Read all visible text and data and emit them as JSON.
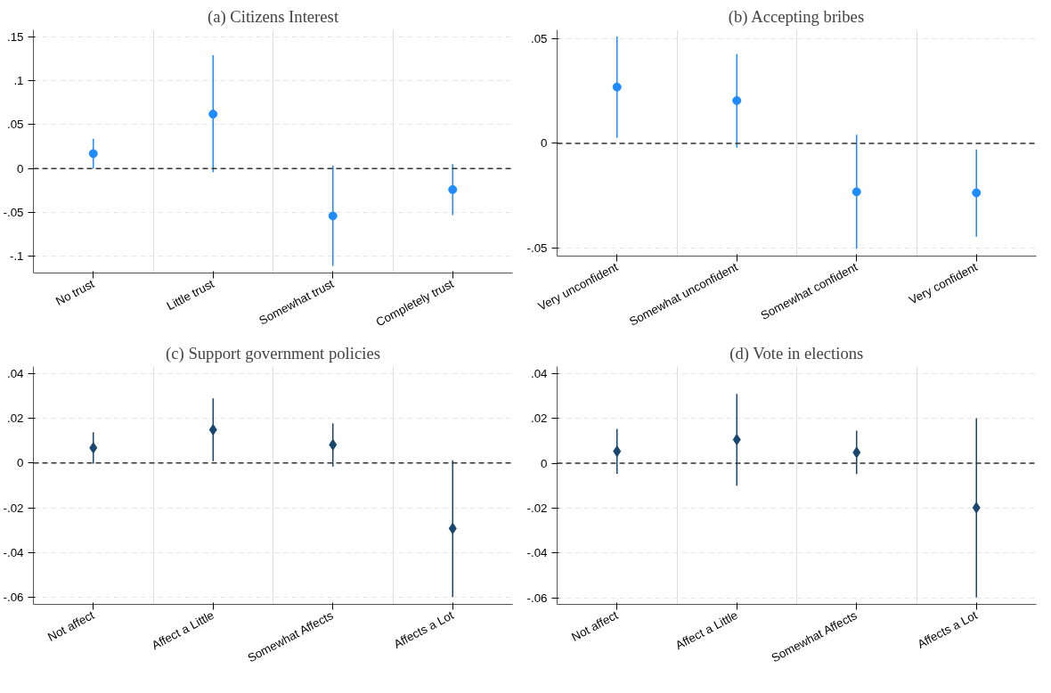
{
  "chart_data": [
    {
      "type": "scatter",
      "title": "(a) Citizens Interest",
      "categories": [
        "No trust",
        "Little trust",
        "Somewhat trust",
        "Completely trust"
      ],
      "series": [
        {
          "color": "#1e8cff",
          "values": [
            0.017,
            0.062,
            -0.054,
            -0.024
          ],
          "errors": [
            [
              0.0,
              0.034
            ],
            [
              -0.004,
              0.129
            ],
            [
              -0.111,
              0.0035
            ],
            [
              -0.053,
              0.005
            ]
          ]
        }
      ],
      "ylim": [
        -0.119,
        0.158
      ],
      "yticks": [
        {
          "value": -0.1,
          "label": "-.1"
        },
        {
          "value": -0.05,
          "label": "-.05"
        },
        0,
        {
          "value": 0.05,
          "label": ".05"
        },
        {
          "value": 0.1,
          "label": ".1"
        },
        {
          "value": 0.15,
          "label": ".15"
        }
      ],
      "ref_lines": [
        {
          "axis": "y",
          "value": 0,
          "color": "#333333",
          "line_style": "dashed"
        }
      ],
      "grid": true,
      "marker": "circle"
    },
    {
      "type": "scatter",
      "title": "(b) Accepting bribes",
      "categories": [
        "Very unconfident",
        "Somewhat unconfident",
        "Somewhat confident",
        "Very confident"
      ],
      "series": [
        {
          "color": "#1e8cff",
          "values": [
            0.027,
            0.0205,
            -0.0232,
            -0.0237
          ],
          "errors": [
            [
              0.0027,
              0.0512
            ],
            [
              -0.002,
              0.0428
            ],
            [
              -0.0505,
              0.0041
            ],
            [
              -0.0447,
              -0.0029
            ]
          ]
        }
      ],
      "ylim": [
        -0.054,
        0.0544
      ],
      "yticks": [
        {
          "value": -0.05,
          "label": "-.05"
        },
        0,
        {
          "value": 0.05,
          "label": ".05"
        }
      ],
      "ref_lines": [
        {
          "axis": "y",
          "value": 0,
          "color": "#333333",
          "line_style": "dashed"
        }
      ],
      "grid": true,
      "marker": "circle"
    },
    {
      "type": "scatter",
      "title": "(c) Support government policies",
      "categories": [
        "Not affect",
        "Affect a Little",
        "Somewhat Affects",
        "Affects a Lot"
      ],
      "series": [
        {
          "color": "#1a476f",
          "values": [
            0.0068,
            0.0149,
            0.0082,
            -0.0292
          ],
          "errors": [
            [
              -0.0003,
              0.0138
            ],
            [
              0.0008,
              0.0289
            ],
            [
              -0.0015,
              0.0177
            ],
            [
              -0.0598,
              0.0012
            ]
          ]
        }
      ],
      "ylim": [
        -0.0631,
        0.0431
      ],
      "yticks": [
        {
          "value": -0.06,
          "label": "-.06"
        },
        {
          "value": -0.04,
          "label": "-.04"
        },
        {
          "value": -0.02,
          "label": "-.02"
        },
        0,
        {
          "value": 0.02,
          "label": ".02"
        },
        {
          "value": 0.04,
          "label": ".04"
        }
      ],
      "ref_lines": [
        {
          "axis": "y",
          "value": 0,
          "color": "#333333",
          "line_style": "dashed"
        }
      ],
      "grid": true,
      "marker": "diamond"
    },
    {
      "type": "scatter",
      "title": "(d) Vote in elections",
      "categories": [
        "Not affect",
        "Affect a Little",
        "Somewhat Affects",
        "Affects a Lot"
      ],
      "series": [
        {
          "color": "#1a476f",
          "values": [
            0.0053,
            0.0105,
            0.0048,
            -0.0198
          ],
          "errors": [
            [
              -0.0047,
              0.0153
            ],
            [
              -0.01,
              0.0308
            ],
            [
              -0.0048,
              0.0145
            ],
            [
              -0.0597,
              0.02
            ]
          ]
        }
      ],
      "ylim": [
        -0.0628,
        0.043
      ],
      "yticks": [
        {
          "value": -0.06,
          "label": "-.06"
        },
        {
          "value": -0.04,
          "label": "-.04"
        },
        {
          "value": -0.02,
          "label": "-.02"
        },
        0,
        {
          "value": 0.02,
          "label": ".02"
        },
        {
          "value": 0.04,
          "label": ".04"
        }
      ],
      "ref_lines": [
        {
          "axis": "y",
          "value": 0,
          "color": "#333333",
          "line_style": "dashed"
        }
      ],
      "grid": true,
      "marker": "diamond"
    }
  ]
}
